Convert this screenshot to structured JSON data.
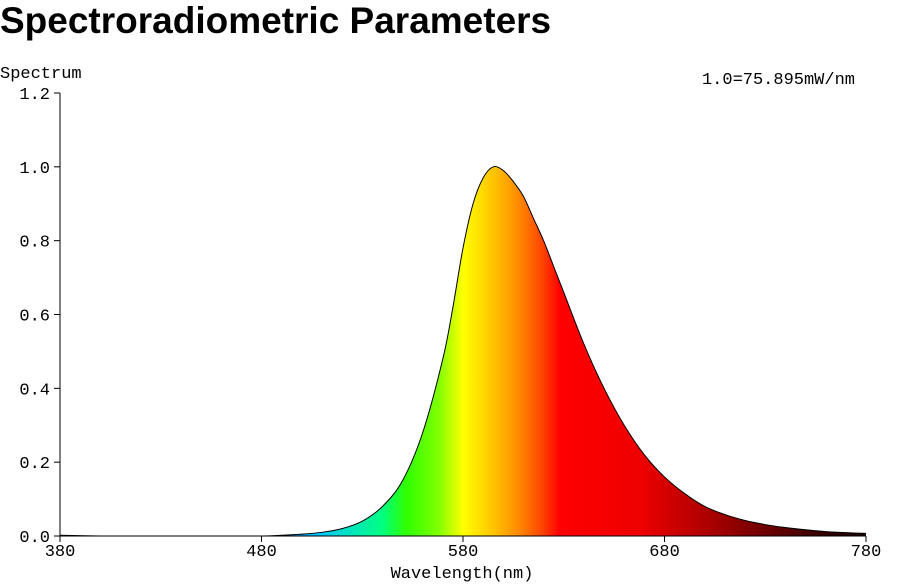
{
  "page": {
    "title": "Spectroradiometric Parameters"
  },
  "chart_data": {
    "type": "area",
    "title": "",
    "ylabel": "Spectrum",
    "xlabel": "Wavelength(nm)",
    "scale_note": "1.0=75.895mW/nm",
    "xlim": [
      380,
      780
    ],
    "ylim": [
      0,
      1.2
    ],
    "x_ticks": [
      380,
      480,
      580,
      680,
      780
    ],
    "x_tick_labels": [
      "380",
      "480",
      "580",
      "680",
      "780"
    ],
    "y_ticks": [
      0,
      0.2,
      0.4,
      0.6,
      0.8,
      1.0,
      1.2
    ],
    "y_tick_labels": [
      "0.0",
      "0.2",
      "0.4",
      "0.6",
      "0.8",
      "1.0",
      "1.2"
    ],
    "grid": false,
    "fill": "wavelength color gradient",
    "x": [
      380,
      400,
      420,
      440,
      460,
      480,
      490,
      500,
      510,
      520,
      530,
      540,
      550,
      560,
      570,
      575,
      580,
      585,
      590,
      595,
      600,
      605,
      610,
      615,
      620,
      625,
      630,
      640,
      650,
      660,
      670,
      680,
      690,
      700,
      710,
      720,
      730,
      740,
      750,
      760,
      770,
      780
    ],
    "y": [
      0.002,
      0.0,
      0.0,
      0.0,
      0.0,
      0.0,
      0.002,
      0.005,
      0.01,
      0.02,
      0.04,
      0.08,
      0.15,
      0.28,
      0.48,
      0.62,
      0.78,
      0.9,
      0.97,
      1.0,
      0.99,
      0.96,
      0.92,
      0.86,
      0.8,
      0.73,
      0.66,
      0.52,
      0.4,
      0.3,
      0.22,
      0.16,
      0.115,
      0.08,
      0.058,
      0.042,
      0.031,
      0.023,
      0.017,
      0.012,
      0.009,
      0.007
    ]
  }
}
